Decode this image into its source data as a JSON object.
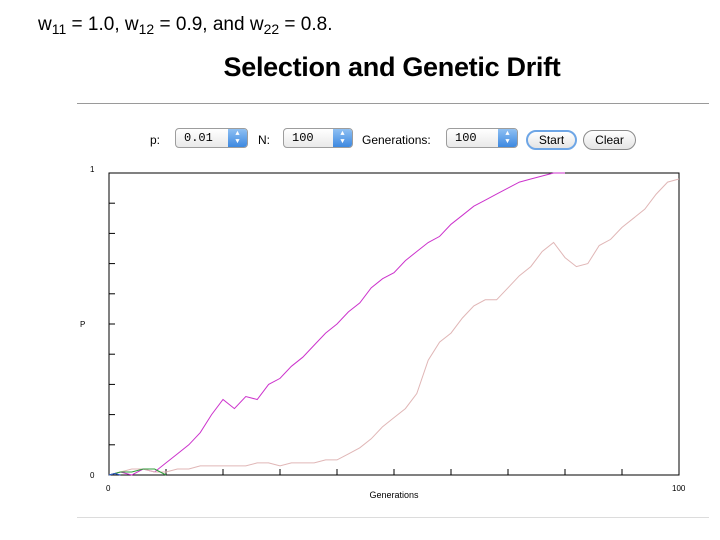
{
  "formula": {
    "w11_symbol": "w",
    "w11_sub": "11",
    "w11_value": " = 1.0, ",
    "w12_symbol": "w",
    "w12_sub": "12",
    "w12_value": " = 0.9, and ",
    "w22_symbol": "w",
    "w22_sub": "22",
    "w22_value": " = 0.8."
  },
  "title": "Selection and Genetic Drift",
  "controls": {
    "p_label": "p:",
    "p_value": "0.01",
    "n_label": "N:",
    "n_value": "100",
    "gen_label": "Generations:",
    "gen_value": "100",
    "start_label": "Start",
    "clear_label": "Clear"
  },
  "colors": {
    "magenta": "#cc33cc",
    "pink": "#e0b6b6",
    "green": "#2e9e3a",
    "blue": "#2a55cc"
  },
  "chart_data": {
    "type": "line",
    "xlabel": "Generations",
    "ylabel": "P",
    "xlim": [
      0,
      100
    ],
    "ylim": [
      0,
      1
    ],
    "x_tick_labels": [
      "0",
      "100"
    ],
    "y_tick_labels": [
      "0",
      "1"
    ],
    "series": [
      {
        "color": "magenta",
        "x": [
          0,
          2,
          4,
          6,
          8,
          10,
          12,
          14,
          16,
          18,
          20,
          22,
          24,
          26,
          28,
          30,
          32,
          34,
          36,
          38,
          40,
          42,
          44,
          46,
          48,
          50,
          52,
          54,
          56,
          58,
          60,
          62,
          64,
          66,
          68,
          70,
          72,
          74,
          76,
          78,
          80
        ],
        "y": [
          0.0,
          0.01,
          0.0,
          0.02,
          0.01,
          0.04,
          0.07,
          0.1,
          0.14,
          0.2,
          0.25,
          0.22,
          0.26,
          0.25,
          0.3,
          0.32,
          0.36,
          0.39,
          0.43,
          0.47,
          0.5,
          0.54,
          0.57,
          0.62,
          0.65,
          0.67,
          0.71,
          0.74,
          0.77,
          0.79,
          0.83,
          0.86,
          0.89,
          0.91,
          0.93,
          0.95,
          0.97,
          0.98,
          0.99,
          1.0,
          1.0
        ]
      },
      {
        "color": "pink",
        "x": [
          0,
          2,
          4,
          6,
          8,
          10,
          12,
          14,
          16,
          18,
          20,
          22,
          24,
          26,
          28,
          30,
          32,
          34,
          36,
          38,
          40,
          42,
          44,
          46,
          48,
          50,
          52,
          54,
          56,
          58,
          60,
          62,
          64,
          66,
          68,
          70,
          72,
          74,
          76,
          78,
          80,
          82,
          84,
          86,
          88,
          90,
          92,
          94,
          96,
          98,
          100
        ],
        "y": [
          0.0,
          0.01,
          0.02,
          0.02,
          0.01,
          0.01,
          0.02,
          0.02,
          0.03,
          0.03,
          0.03,
          0.03,
          0.03,
          0.04,
          0.04,
          0.03,
          0.04,
          0.04,
          0.04,
          0.05,
          0.05,
          0.07,
          0.09,
          0.12,
          0.16,
          0.19,
          0.22,
          0.27,
          0.38,
          0.44,
          0.47,
          0.52,
          0.56,
          0.58,
          0.58,
          0.62,
          0.66,
          0.69,
          0.74,
          0.77,
          0.72,
          0.69,
          0.7,
          0.76,
          0.78,
          0.82,
          0.85,
          0.88,
          0.93,
          0.97,
          0.98
        ]
      },
      {
        "color": "green",
        "x": [
          0,
          2,
          4,
          6,
          8,
          10
        ],
        "y": [
          0.0,
          0.01,
          0.01,
          0.02,
          0.02,
          0.0
        ]
      },
      {
        "color": "blue",
        "x": [
          0,
          1,
          2
        ],
        "y": [
          0.0,
          0.005,
          0.0
        ]
      }
    ]
  }
}
